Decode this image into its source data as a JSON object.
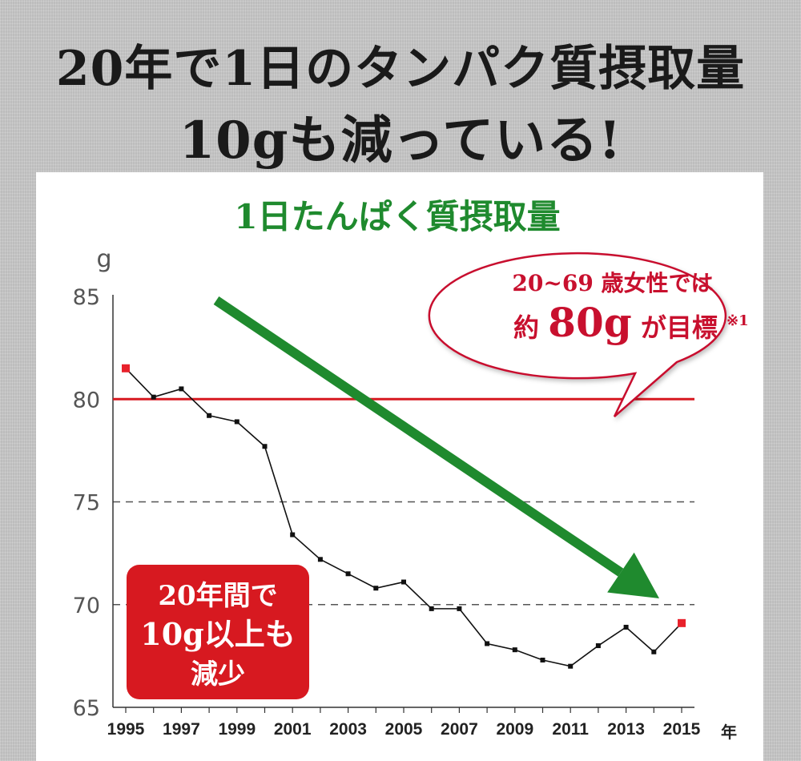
{
  "headline": {
    "line1": "20年で1日のタンパク質摂取量",
    "line2": "10gも減っている!"
  },
  "chart_data": {
    "type": "line",
    "title": "1日たんぱく質摂取量",
    "ylabel": "g",
    "xlabel": "年",
    "ylim": [
      65,
      85
    ],
    "yticks": [
      "85",
      "80",
      "75",
      "70",
      "65"
    ],
    "xtick_labels": [
      "1995",
      "1997",
      "1999",
      "2001",
      "2003",
      "2005",
      "2007",
      "2009",
      "2011",
      "2013",
      "2015"
    ],
    "x": [
      1995,
      1996,
      1997,
      1998,
      1999,
      2000,
      2001,
      2002,
      2003,
      2004,
      2005,
      2006,
      2007,
      2008,
      2009,
      2010,
      2011,
      2012,
      2013,
      2014,
      2015
    ],
    "values": [
      81.5,
      80.1,
      80.5,
      79.2,
      78.9,
      77.7,
      73.4,
      72.2,
      71.5,
      70.8,
      71.1,
      69.8,
      69.8,
      68.1,
      67.8,
      67.3,
      67.0,
      68.0,
      68.9,
      67.7,
      69.1
    ],
    "target_line": {
      "value": 80,
      "color": "#d71920"
    },
    "dashed_gridlines": [
      75,
      70
    ],
    "series_color": "#111111",
    "endpoint_color": "#e8212b",
    "trend_arrow_color": "#1f8a2e",
    "callout": {
      "line1": "20~69 歳女性では",
      "line2_prefix": "約",
      "line2_big": "80g",
      "line2_suffix": "が目標",
      "note": "※1",
      "color": "#c8102e"
    },
    "badge": {
      "lines": [
        "20年間で",
        "10g以上も",
        "減少"
      ],
      "color": "#d71920"
    }
  }
}
